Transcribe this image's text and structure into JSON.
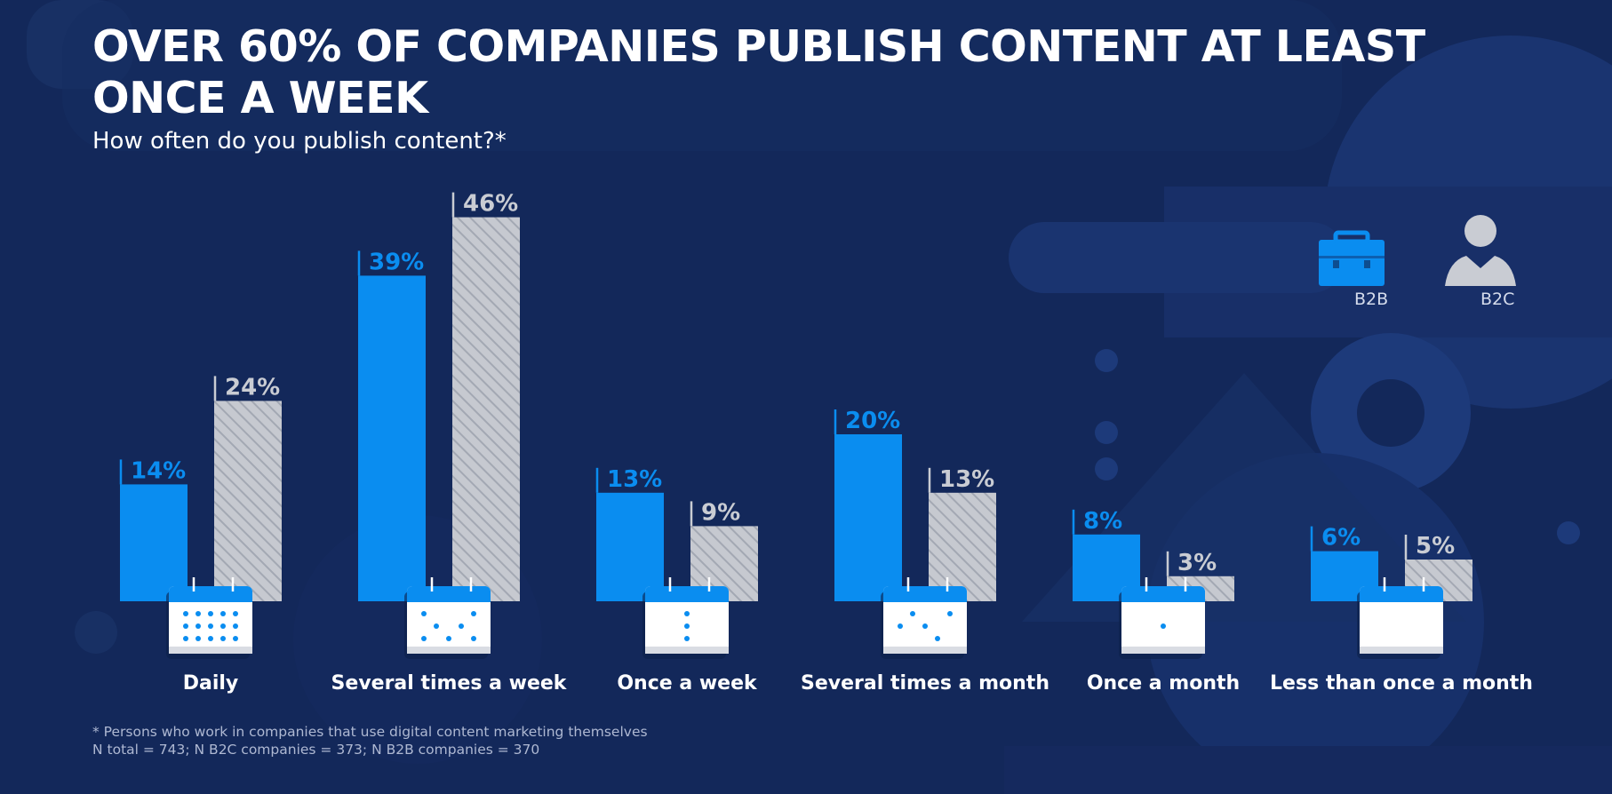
{
  "title": "OVER 60% OF COMPANIES PUBLISH CONTENT AT LEAST ONCE A WEEK",
  "subtitle": "How often do you publish content?*",
  "footnote_line1": "* Persons who work in companies that use digital content marketing themselves",
  "footnote_line2": "N total = 743; N B2C companies = 373; N B2B companies = 370",
  "colors": {
    "background": "#13285a",
    "b2b": "#0a8df0",
    "b2c": "#c6c9d0",
    "b2c_label": "#c9ccd3"
  },
  "legend": {
    "b2b_label": "B2B",
    "b2b_icon": "briefcase-icon",
    "b2c_label": "B2C",
    "b2c_icon": "person-icon"
  },
  "chart_data": {
    "type": "bar",
    "categories": [
      "Daily",
      "Several times a week",
      "Once a week",
      "Several times a month",
      "Once a month",
      "Less than once a month"
    ],
    "category_icons": [
      "calendar-daily-icon",
      "calendar-several-week-icon",
      "calendar-weekly-icon",
      "calendar-several-month-icon",
      "calendar-monthly-icon",
      "calendar-rarely-icon"
    ],
    "series": [
      {
        "name": "B2B",
        "values": [
          14,
          39,
          13,
          20,
          8,
          6
        ],
        "labels": [
          "14%",
          "39%",
          "13%",
          "20%",
          "8%",
          "6%"
        ]
      },
      {
        "name": "B2C",
        "values": [
          24,
          46,
          9,
          13,
          3,
          5
        ],
        "labels": [
          "24%",
          "46%",
          "9%",
          "13%",
          "3%",
          "5%"
        ]
      }
    ],
    "title": "OVER 60% OF COMPANIES PUBLISH CONTENT AT LEAST ONCE A WEEK",
    "subtitle": "How often do you publish content?*",
    "ylim": [
      0,
      46
    ],
    "legend_position": "top-right",
    "grid": false
  }
}
